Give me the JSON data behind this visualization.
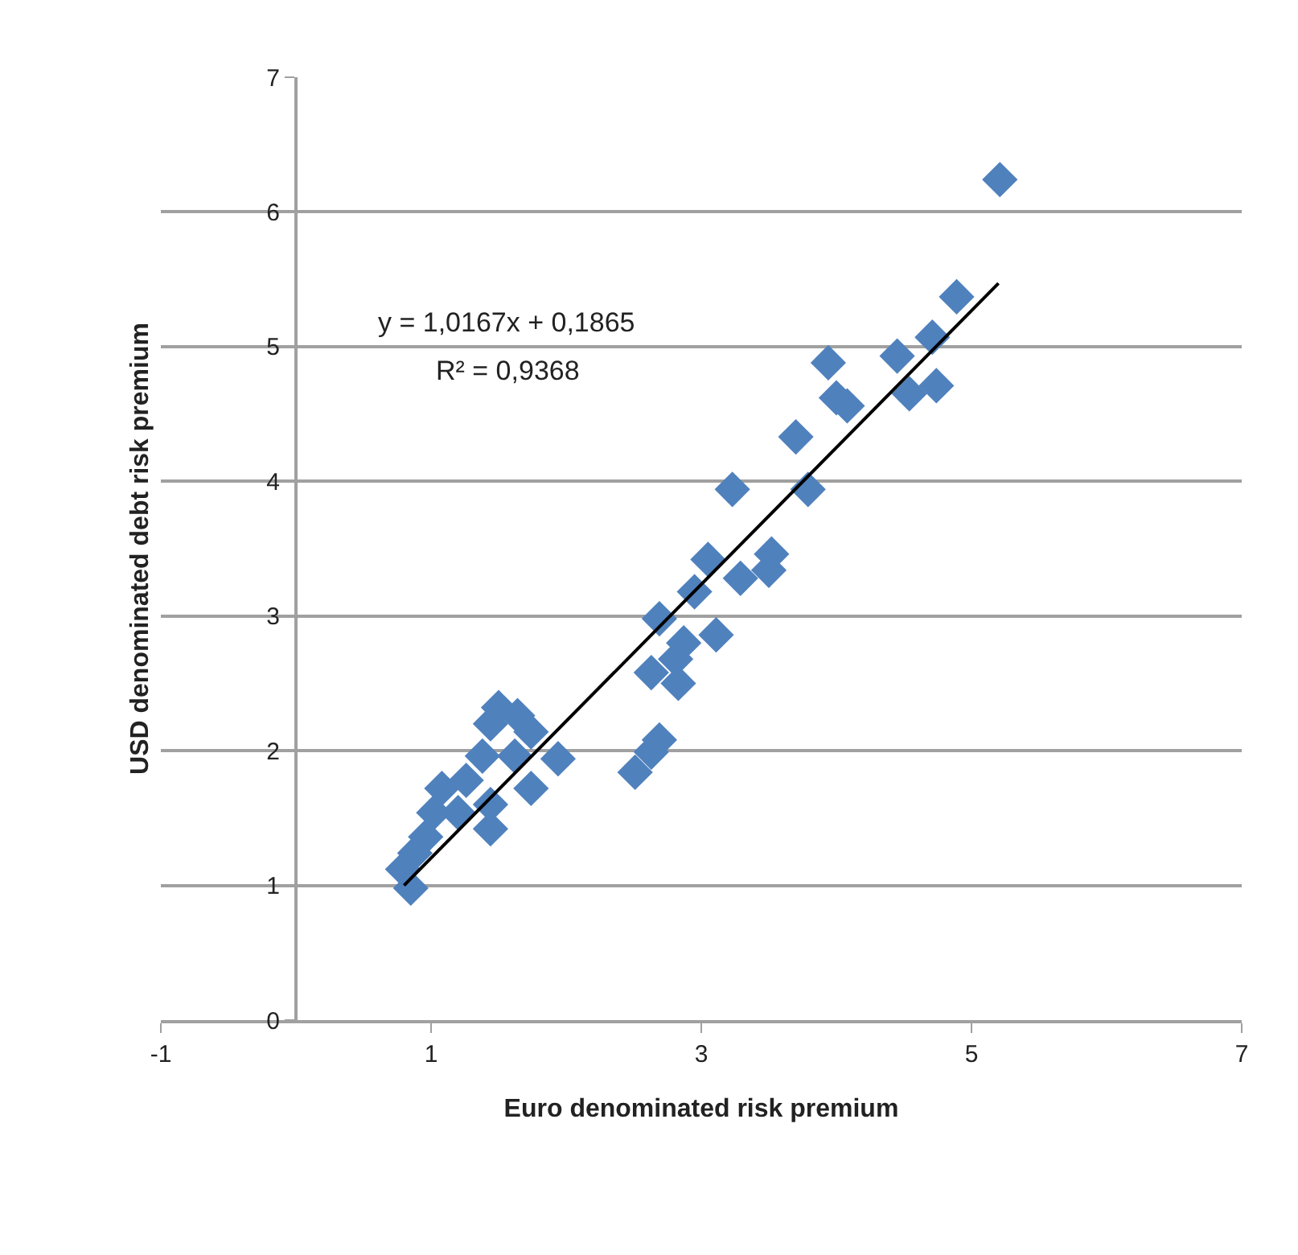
{
  "chart_data": {
    "type": "scatter",
    "xlabel": "Euro denominated risk premium",
    "ylabel": "USD denominated debt risk premium",
    "xlim": [
      -1,
      7
    ],
    "xticks": [
      -1,
      1,
      3,
      5,
      7
    ],
    "ylim": [
      0,
      7
    ],
    "yticks": [
      0,
      1,
      2,
      3,
      4,
      5,
      6,
      7
    ],
    "grid": "y",
    "marker": "diamond",
    "annotations": [
      "y = 1,0167x + 0,1865",
      "R² = 0,9368"
    ],
    "series": [
      {
        "color": "#4f81bd",
        "x": [
          5.21,
          4.89,
          4.71,
          4.74,
          4.45,
          4.54,
          3.94,
          4.0,
          4.08,
          3.7,
          3.79,
          3.23,
          3.05,
          3.52,
          3.5,
          3.29,
          2.95,
          3.11,
          2.69,
          2.87,
          2.81,
          2.83,
          2.63,
          2.69,
          2.63,
          2.51,
          1.94,
          1.74,
          1.64,
          1.5,
          1.44,
          1.62,
          1.74,
          1.44,
          1.26,
          1.38,
          1.2,
          1.08,
          1.02,
          0.96,
          0.88,
          0.79,
          0.85,
          1.44
        ],
        "values": [
          6.24,
          5.37,
          5.07,
          4.71,
          4.93,
          4.65,
          4.88,
          4.62,
          4.56,
          4.33,
          3.94,
          3.94,
          3.42,
          3.46,
          3.34,
          3.28,
          3.18,
          2.86,
          2.98,
          2.8,
          2.68,
          2.5,
          2.58,
          2.08,
          1.99,
          1.84,
          1.94,
          2.14,
          2.26,
          2.32,
          2.2,
          1.96,
          1.72,
          1.6,
          1.78,
          1.96,
          1.54,
          1.72,
          1.54,
          1.36,
          1.24,
          1.12,
          0.98,
          1.42
        ]
      },
      {
        "type": "line",
        "color": "#000000",
        "marker": "none",
        "x": [
          0.8,
          5.2
        ],
        "values": [
          1.0,
          5.47
        ]
      }
    ]
  }
}
